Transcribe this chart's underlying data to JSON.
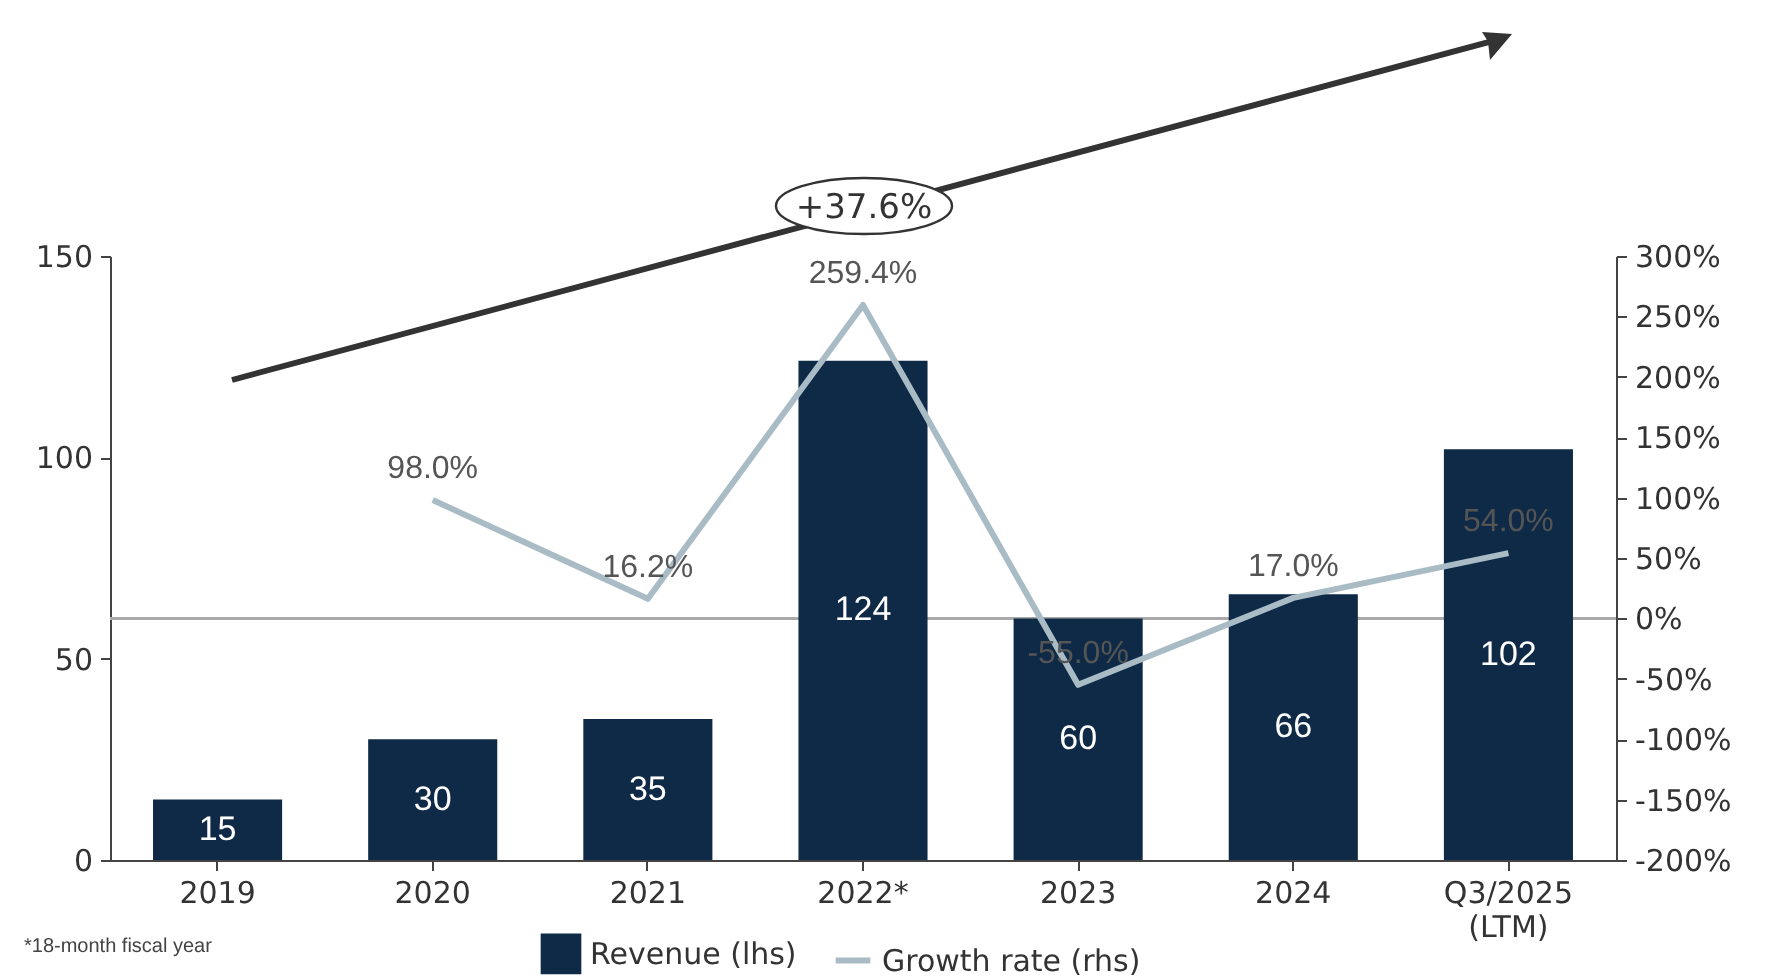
{
  "chart_data": {
    "type": "bar",
    "categories": [
      "2019",
      "2020",
      "2021",
      "2022*",
      "2023",
      "2024",
      "Q3/2025\n(LTM)"
    ],
    "series": [
      {
        "name": "Revenue (lhs)",
        "color": "#0e2a47",
        "values": [
          15,
          30,
          35,
          124,
          60,
          66,
          102
        ]
      },
      {
        "name": "Growth rate (rhs)",
        "type": "line",
        "axis": "y2",
        "color": "#a9bcc6",
        "values": [
          null,
          98.0,
          16.2,
          259.4,
          -55.0,
          17.0,
          54.0
        ],
        "value_labels": [
          null,
          "98.0%",
          "16.2%",
          "259.4%",
          "-55.0%",
          "17.0%",
          "54.0%"
        ]
      }
    ],
    "data_labels": true,
    "ylim": [
      0,
      150
    ],
    "yticks": [
      0,
      50,
      100,
      150
    ],
    "y2lim": [
      -200,
      300
    ],
    "y2ticks": [
      {
        "value": -200,
        "label": "-200%"
      },
      {
        "value": -150,
        "label": "-150%"
      },
      {
        "value": -100,
        "label": "-100%"
      },
      {
        "value": -50,
        "label": "-50%"
      },
      {
        "value": 0,
        "label": "0%"
      },
      {
        "value": 50,
        "label": "50%"
      },
      {
        "value": 100,
        "label": "100%"
      },
      {
        "value": 150,
        "label": "150%"
      },
      {
        "value": 200,
        "label": "200%"
      },
      {
        "value": 250,
        "label": "250%"
      },
      {
        "value": 300,
        "label": "300%"
      }
    ],
    "ref_lines": [
      {
        "axis": "y2",
        "value": 0,
        "color": "#aaaaaa"
      }
    ],
    "annotations": [
      "+37.6%",
      "*18-month fiscal year"
    ],
    "legend": "bottom",
    "grid": false
  }
}
